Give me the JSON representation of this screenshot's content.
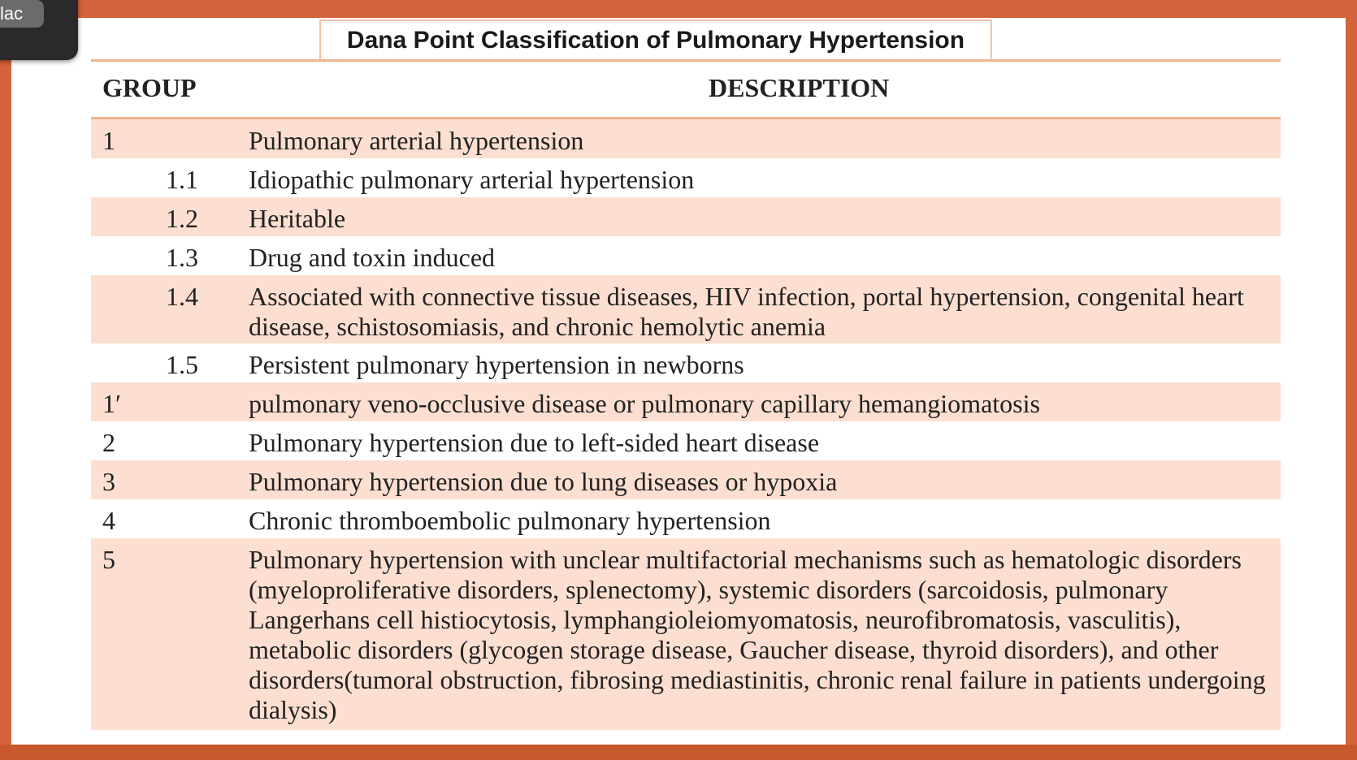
{
  "overlay": {
    "label": "lac"
  },
  "slide": {
    "title": "Dana Point Classification of Pulmonary Hypertension",
    "headers": {
      "group": "GROUP",
      "description": "DESCRIPTION"
    },
    "rows": [
      {
        "group": "1",
        "subgroup": "",
        "description": "Pulmonary arterial hypertension"
      },
      {
        "group": "",
        "subgroup": "1.1",
        "description": "Idiopathic pulmonary arterial hypertension"
      },
      {
        "group": "",
        "subgroup": "1.2",
        "description": "Heritable"
      },
      {
        "group": "",
        "subgroup": "1.3",
        "description": "Drug and toxin induced"
      },
      {
        "group": "",
        "subgroup": "1.4",
        "description": "Associated with connective tissue diseases, HIV infection, portal hypertension, congenital heart disease, schistosomiasis, and chronic hemolytic anemia"
      },
      {
        "group": "",
        "subgroup": "1.5",
        "description": "Persistent pulmonary hypertension in newborns"
      },
      {
        "group": "1′",
        "subgroup": "",
        "description": "pulmonary veno-occlusive disease or pulmonary capillary hemangiomatosis"
      },
      {
        "group": "2",
        "subgroup": "",
        "description": "Pulmonary hypertension due to left-sided heart disease"
      },
      {
        "group": "3",
        "subgroup": "",
        "description": "Pulmonary hypertension due to lung diseases or hypoxia"
      },
      {
        "group": "4",
        "subgroup": "",
        "description": "Chronic thromboembolic pulmonary hypertension"
      },
      {
        "group": "5",
        "subgroup": "",
        "description": "Pulmonary hypertension with unclear multifactorial mechanisms such as hematologic disorders (myeloproliferative disorders, splenectomy), systemic disorders (sarcoidosis, pulmonary Langerhans cell histiocytosis, lymphangioleiomyomatosis, neurofibromatosis, vasculitis), metabolic disorders (glycogen storage disease, Gaucher disease, thyroid disorders), and other disorders(tumoral obstruction, fibrosing mediastinitis, chronic renal failure in patients undergoing dialysis)"
      }
    ]
  },
  "colors": {
    "frame": "#d4623a",
    "row_shade": "#fcdfd0",
    "rule": "#f0b48f"
  }
}
